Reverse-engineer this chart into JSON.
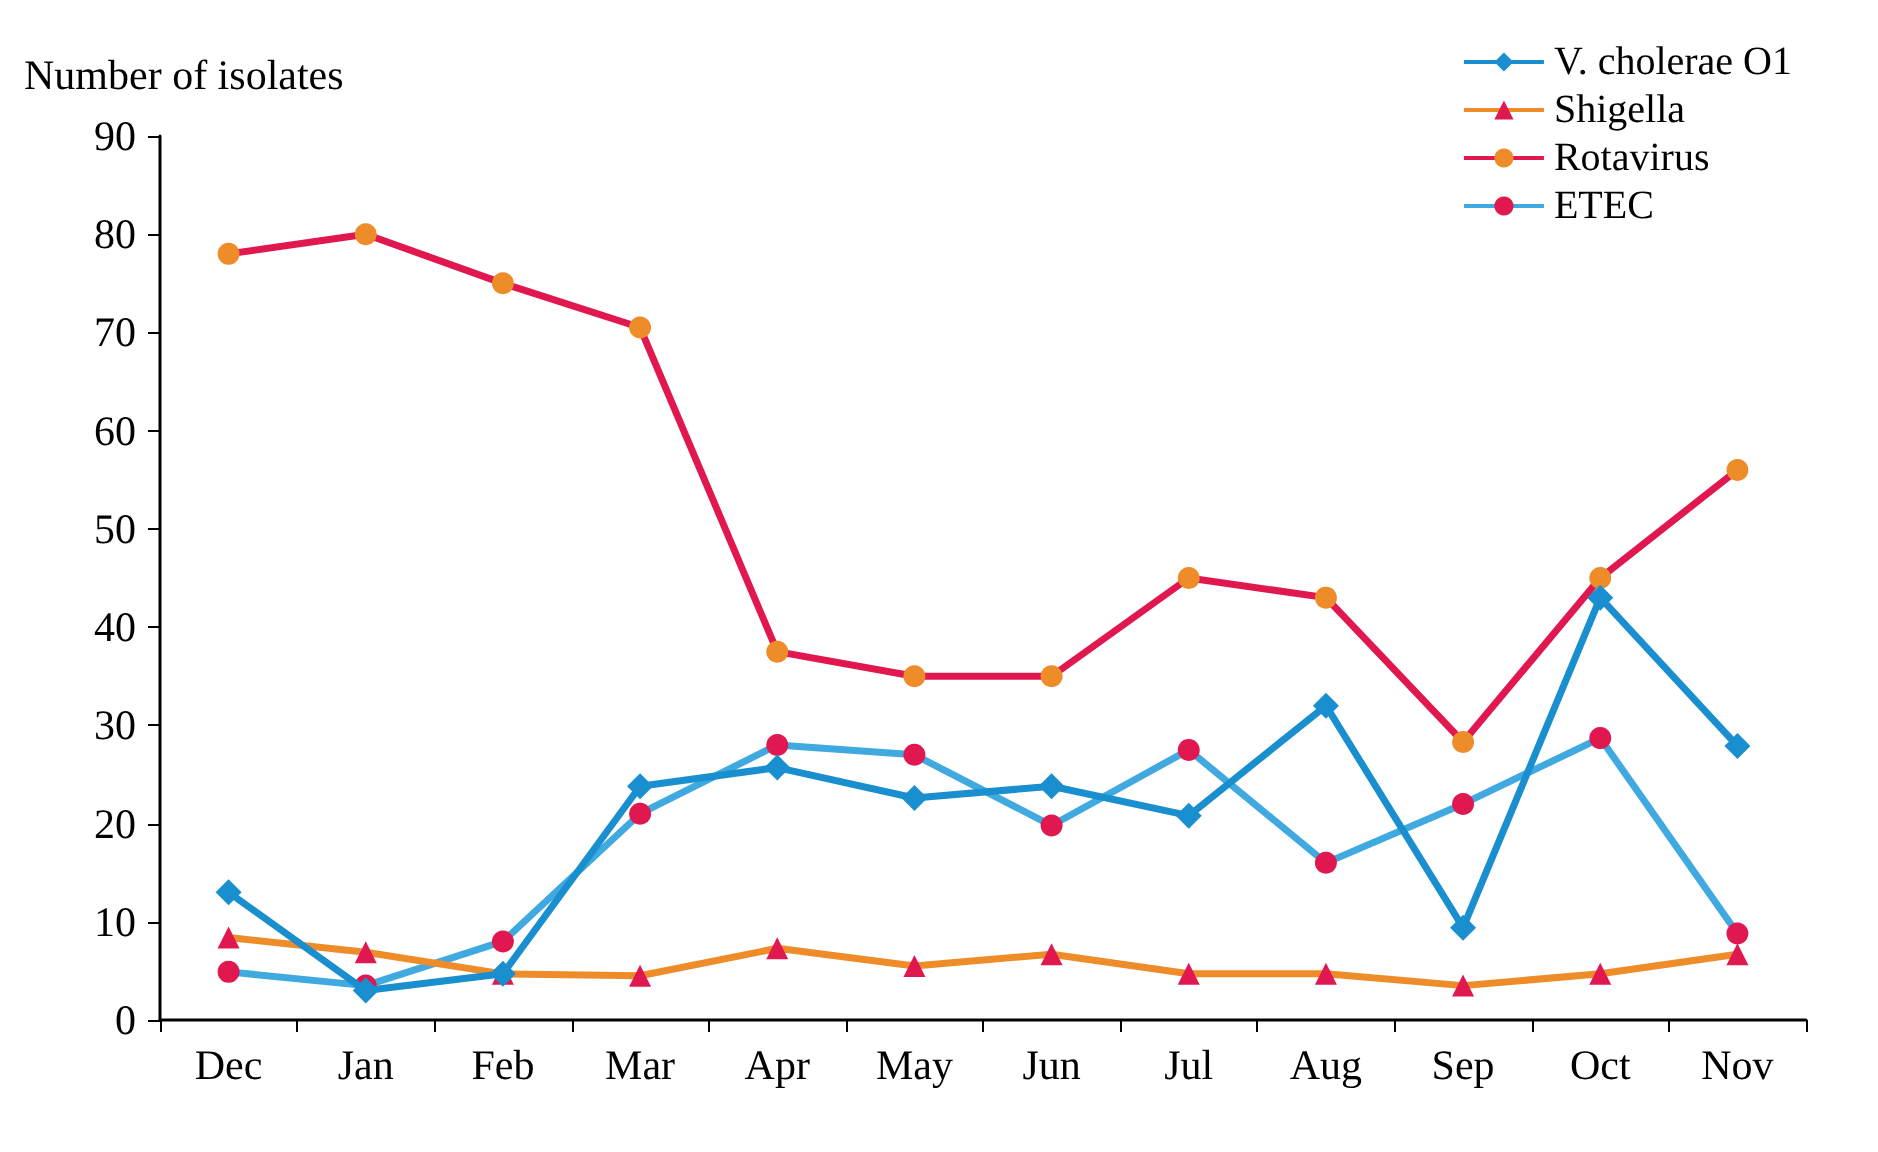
{
  "chart_data": {
    "type": "line",
    "ylabel": "Number of isolates",
    "categories": [
      "Dec",
      "Jan",
      "Feb",
      "Mar",
      "Apr",
      "May",
      "Jun",
      "Jul",
      "Aug",
      "Sep",
      "Oct",
      "Nov"
    ],
    "ylim": [
      0,
      90
    ],
    "yticks": [
      0,
      10,
      20,
      30,
      40,
      50,
      60,
      70,
      80,
      90
    ],
    "grid": false,
    "legend": "top right",
    "series": [
      {
        "name": "V. cholerae O1",
        "color": "#1a8fd0",
        "marker": "diamond",
        "colors": [
          "#1a8fd0",
          "#1a8fd0",
          "#1a8fd0",
          "#1a8fd0",
          "#1a8fd0",
          "#1a8fd0",
          "#1a8fd0",
          "#1a8fd0",
          "#1a8fd0",
          "#1a8fd0",
          "#1a8fd0",
          "#1a8fd0"
        ],
        "values": [
          13,
          3,
          4.7,
          23.8,
          25.7,
          22.6,
          23.8,
          20.8,
          32,
          9.4,
          43,
          27.9
        ]
      },
      {
        "name": "Shigella",
        "color": "#ef8c2a",
        "marker": "triangle",
        "colors": [
          "#e0184f",
          "#e0184f",
          "#e0184f",
          "#e0184f",
          "#e0184f",
          "#e0184f",
          "#e0184f",
          "#e0184f",
          "#e0184f",
          "#e0184f",
          "#e0184f",
          "#e0184f"
        ],
        "values": [
          8.4,
          6.9,
          4.7,
          4.5,
          7.3,
          5.5,
          6.7,
          4.7,
          4.7,
          3.5,
          4.7,
          6.7
        ]
      },
      {
        "name": "Rotavirus",
        "color": "#e0184f",
        "marker": "circle",
        "colors": [
          "#ef8c2a",
          "#ef8c2a",
          "#ef8c2a",
          "#ef8c2a",
          "#ef8c2a",
          "#ef8c2a",
          "#ef8c2a",
          "#ef8c2a",
          "#ef8c2a",
          "#ef8c2a",
          "#ef8c2a",
          "#ef8c2a"
        ],
        "values": [
          78,
          80,
          75,
          70.5,
          37.5,
          35,
          35,
          45,
          43,
          28.3,
          45,
          56
        ]
      },
      {
        "name": "ETEC",
        "color": "#3fa9e0",
        "marker": "circle",
        "colors": [
          "#e0184f",
          "#e0184f",
          "#e0184f",
          "#e0184f",
          "#e0184f",
          "#e0184f",
          "#e0184f",
          "#e0184f",
          "#e0184f",
          "#e0184f",
          "#e0184f",
          "#e0184f"
        ],
        "values": [
          4.9,
          3.5,
          8,
          21,
          28,
          27,
          19.8,
          27.5,
          16,
          22,
          28.7,
          8.8
        ]
      }
    ]
  }
}
